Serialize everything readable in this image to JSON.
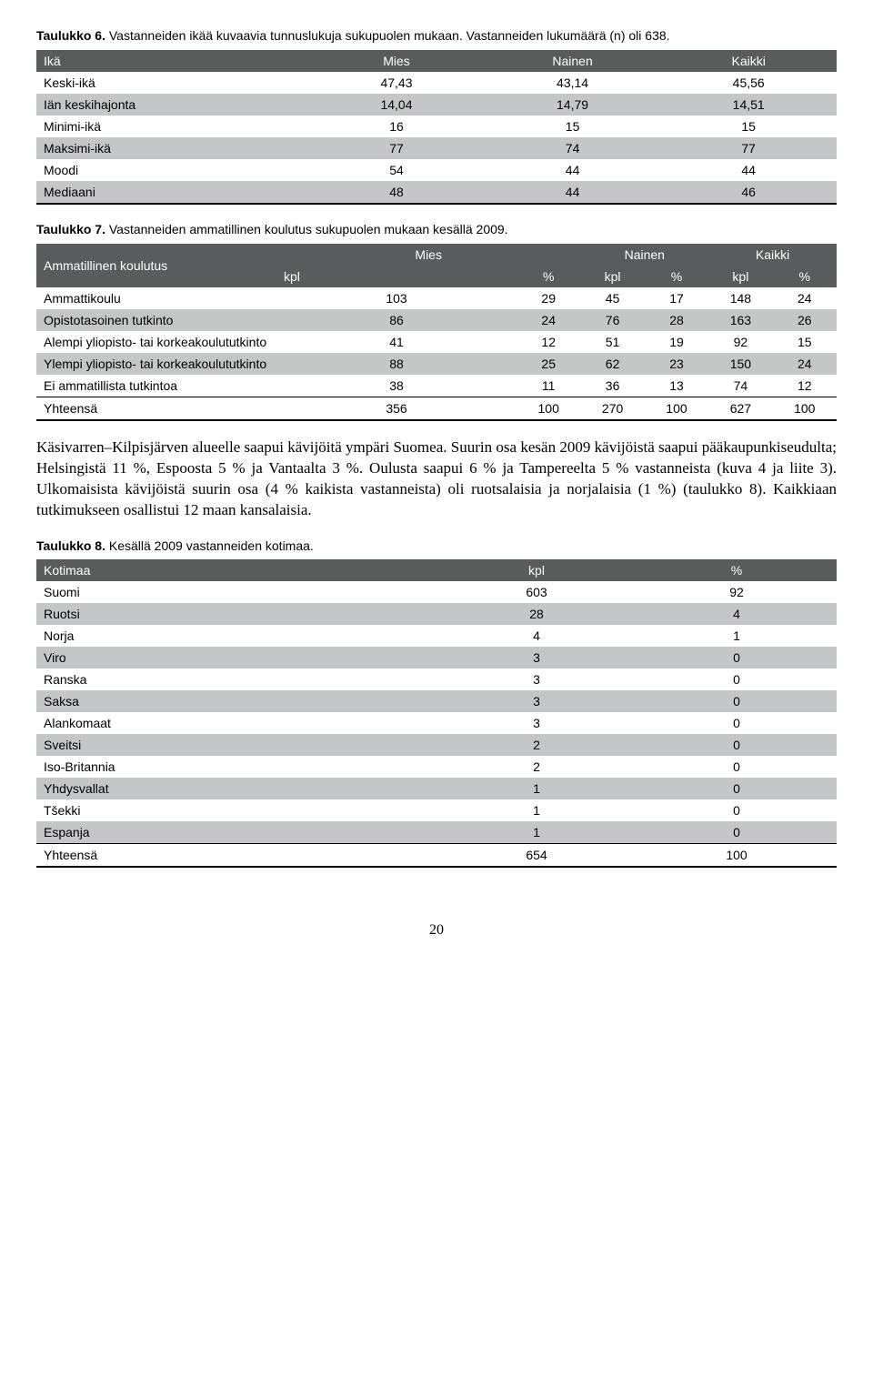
{
  "colors": {
    "header_bg": "#595b5c",
    "header_text": "#ffffff",
    "shade_bg": "#c5c6c7",
    "page_bg": "#ffffff",
    "text": "#000000",
    "rule": "#000000"
  },
  "table6": {
    "caption_bold": "Taulukko 6.",
    "caption_rest": " Vastanneiden ikää kuvaavia tunnuslukuja sukupuolen mukaan. Vastanneiden lukumäärä (n) oli 638.",
    "columns": [
      "Ikä",
      "Mies",
      "Nainen",
      "Kaikki"
    ],
    "rows": [
      {
        "label": "Keski-ikä",
        "vals": [
          "47,43",
          "43,14",
          "45,56"
        ],
        "shade": false
      },
      {
        "label": "Iän keskihajonta",
        "vals": [
          "14,04",
          "14,79",
          "14,51"
        ],
        "shade": true
      },
      {
        "label": "Minimi-ikä",
        "vals": [
          "16",
          "15",
          "15"
        ],
        "shade": false
      },
      {
        "label": "Maksimi-ikä",
        "vals": [
          "77",
          "74",
          "77"
        ],
        "shade": true
      },
      {
        "label": "Moodi",
        "vals": [
          "54",
          "44",
          "44"
        ],
        "shade": false
      },
      {
        "label": "Mediaani",
        "vals": [
          "48",
          "44",
          "46"
        ],
        "shade": true
      }
    ]
  },
  "table7": {
    "caption_bold": "Taulukko 7.",
    "caption_rest": " Vastanneiden ammatillinen koulutus sukupuolen mukaan kesällä 2009.",
    "rowhead": "Ammatillinen koulutus",
    "groups": [
      "Mies",
      "Nainen",
      "Kaikki"
    ],
    "subs": [
      "kpl",
      "%",
      "kpl",
      "%",
      "kpl",
      "%"
    ],
    "rows": [
      {
        "label": "Ammattikoulu",
        "vals": [
          "103",
          "29",
          "45",
          "17",
          "148",
          "24"
        ],
        "shade": false
      },
      {
        "label": "Opistotasoinen tutkinto",
        "vals": [
          "86",
          "24",
          "76",
          "28",
          "163",
          "26"
        ],
        "shade": true
      },
      {
        "label": "Alempi yliopisto- tai korkeakoulututkinto",
        "vals": [
          "41",
          "12",
          "51",
          "19",
          "92",
          "15"
        ],
        "shade": false
      },
      {
        "label": "Ylempi yliopisto- tai korkeakoulututkinto",
        "vals": [
          "88",
          "25",
          "62",
          "23",
          "150",
          "24"
        ],
        "shade": true
      },
      {
        "label": "Ei ammatillista tutkintoa",
        "vals": [
          "38",
          "11",
          "36",
          "13",
          "74",
          "12"
        ],
        "shade": false
      }
    ],
    "total": {
      "label": "Yhteensä",
      "vals": [
        "356",
        "100",
        "270",
        "100",
        "627",
        "100"
      ]
    }
  },
  "paragraph": "Käsivarren–Kilpisjärven alueelle saapui kävijöitä ympäri Suomea. Suurin osa kesän 2009 kävijöistä saapui pääkaupunkiseudulta; Helsingistä 11 %, Espoosta 5 % ja Vantaalta 3 %. Oulusta saapui 6 % ja Tampereelta 5 % vastanneista (kuva 4 ja liite 3). Ulkomaisista kävijöistä suurin osa (4 % kaikista vastanneista) oli ruotsalaisia ja norjalaisia (1 %) (taulukko 8). Kaikkiaan tutkimukseen osallistui 12 maan kansalaisia.",
  "table8": {
    "caption_bold": "Taulukko 8.",
    "caption_rest": " Kesällä 2009 vastanneiden kotimaa.",
    "columns": [
      "Kotimaa",
      "kpl",
      "%"
    ],
    "rows": [
      {
        "label": "Suomi",
        "vals": [
          "603",
          "92"
        ],
        "shade": false
      },
      {
        "label": "Ruotsi",
        "vals": [
          "28",
          "4"
        ],
        "shade": true
      },
      {
        "label": "Norja",
        "vals": [
          "4",
          "1"
        ],
        "shade": false
      },
      {
        "label": "Viro",
        "vals": [
          "3",
          "0"
        ],
        "shade": true
      },
      {
        "label": "Ranska",
        "vals": [
          "3",
          "0"
        ],
        "shade": false
      },
      {
        "label": "Saksa",
        "vals": [
          "3",
          "0"
        ],
        "shade": true
      },
      {
        "label": "Alankomaat",
        "vals": [
          "3",
          "0"
        ],
        "shade": false
      },
      {
        "label": "Sveitsi",
        "vals": [
          "2",
          "0"
        ],
        "shade": true
      },
      {
        "label": "Iso-Britannia",
        "vals": [
          "2",
          "0"
        ],
        "shade": false
      },
      {
        "label": "Yhdysvallat",
        "vals": [
          "1",
          "0"
        ],
        "shade": true
      },
      {
        "label": "Tšekki",
        "vals": [
          "1",
          "0"
        ],
        "shade": false
      },
      {
        "label": "Espanja",
        "vals": [
          "1",
          "0"
        ],
        "shade": true
      }
    ],
    "total": {
      "label": "Yhteensä",
      "vals": [
        "654",
        "100"
      ]
    }
  },
  "page_number": "20"
}
